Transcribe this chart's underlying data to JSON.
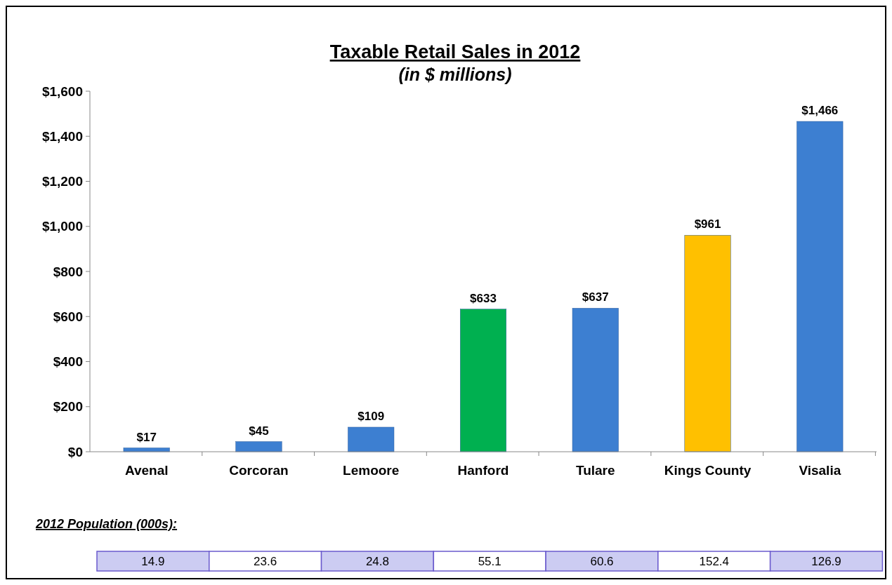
{
  "chart_data": {
    "type": "bar",
    "title": "Taxable Retail Sales in 2012",
    "subtitle": "(in $ millions)",
    "categories": [
      "Avenal",
      "Corcoran",
      "Lemoore",
      "Hanford",
      "Tulare",
      "Kings County",
      "Visalia"
    ],
    "values": [
      17,
      45,
      109,
      633,
      637,
      961,
      1466
    ],
    "colors": [
      "#3d7fd1",
      "#3d7fd1",
      "#3d7fd1",
      "#00b050",
      "#3d7fd1",
      "#ffc000",
      "#3d7fd1"
    ],
    "value_labels": [
      "$17",
      "$45",
      "$109",
      "$633",
      "$637",
      "$961",
      "$1,466"
    ],
    "ylim": [
      0,
      1600
    ],
    "yticks": [
      {
        "value": 0,
        "label": "$0"
      },
      {
        "value": 200,
        "label": "$200"
      },
      {
        "value": 400,
        "label": "$400"
      },
      {
        "value": 600,
        "label": "$600"
      },
      {
        "value": 800,
        "label": "$800"
      },
      {
        "value": 1000,
        "label": "$1,000"
      },
      {
        "value": 1200,
        "label": "$1,200"
      },
      {
        "value": 1400,
        "label": "$1,400"
      },
      {
        "value": 1600,
        "label": "$1,600"
      }
    ],
    "grid": false,
    "annotations": [
      "2012 Population (000s):",
      "14.9",
      "23.6",
      "24.8",
      "55.1",
      "60.6",
      "152.4",
      "126.9"
    ]
  }
}
